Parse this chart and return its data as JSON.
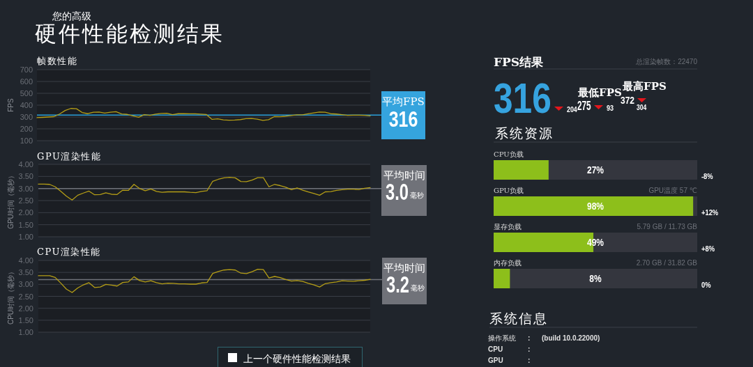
{
  "chart_data": [
    {
      "type": "other",
      "title": "硬件性能检测结果",
      "subtitle": "您的高级"
    },
    {
      "type": "line",
      "title": "帧数性能",
      "ylabel": "FPS",
      "categories": [
        null,
        null,
        null,
        null,
        null,
        null,
        null,
        null,
        null,
        null,
        null,
        null,
        null,
        null,
        null,
        null,
        null,
        null,
        null,
        null,
        null,
        null,
        null,
        null,
        null,
        null,
        null,
        null,
        null,
        null,
        null,
        null,
        null,
        null,
        null,
        null,
        null,
        null,
        null,
        null,
        null,
        null,
        null,
        null,
        null,
        null,
        null,
        null,
        null,
        null,
        null,
        null,
        null,
        null,
        null,
        null,
        null,
        null,
        null,
        null
      ],
      "series": [
        {
          "color": "#b59e16",
          "values": [
            295,
            297,
            300,
            303,
            325,
            355,
            372,
            370,
            338,
            328,
            340,
            342,
            333,
            340,
            345,
            326,
            322,
            310,
            298,
            320,
            314,
            324,
            330,
            332,
            320,
            328,
            328,
            327,
            327,
            324,
            321,
            280,
            284,
            276,
            273,
            274,
            278,
            286,
            287,
            281,
            271,
            277,
            303,
            302,
            306,
            312,
            318,
            318,
            327,
            334,
            342,
            340,
            328,
            325,
            320,
            314,
            316,
            316,
            314,
            309
          ]
        }
      ],
      "ylim": [
        100,
        700
      ],
      "yticks": [
        100,
        200,
        300,
        400,
        500,
        600,
        700
      ],
      "grid": "y",
      "tick_labels": "y",
      "ref_lines": [
        {
          "axis": "y",
          "value": 316,
          "color": "#2a9fd9"
        }
      ]
    },
    {
      "type": "other",
      "title": "平均FPS",
      "annotations": [
        "316"
      ]
    },
    {
      "type": "line",
      "title": "GPU渲染性能",
      "ylabel": "GPU时间（毫秒）",
      "categories": [
        null,
        null,
        null,
        null,
        null,
        null,
        null,
        null,
        null,
        null,
        null,
        null,
        null,
        null,
        null,
        null,
        null,
        null,
        null,
        null,
        null,
        null,
        null,
        null,
        null,
        null,
        null,
        null,
        null,
        null,
        null,
        null,
        null,
        null,
        null,
        null,
        null,
        null,
        null,
        null,
        null,
        null,
        null,
        null,
        null,
        null,
        null,
        null,
        null,
        null,
        null,
        null,
        null,
        null,
        null,
        null,
        null,
        null,
        null,
        null
      ],
      "series": [
        {
          "color": "#b59e16",
          "values": [
            3.18,
            3.18,
            3.17,
            3.07,
            2.88,
            2.68,
            2.52,
            2.72,
            2.81,
            2.89,
            2.74,
            2.75,
            2.82,
            2.76,
            2.75,
            2.93,
            2.92,
            3.17,
            3.0,
            2.91,
            2.98,
            2.88,
            2.84,
            2.86,
            2.86,
            2.86,
            2.86,
            2.84,
            2.83,
            2.88,
            2.91,
            3.3,
            3.38,
            3.44,
            3.46,
            3.44,
            3.29,
            3.28,
            3.35,
            3.45,
            3.45,
            3.07,
            3.17,
            3.12,
            3.05,
            2.95,
            3.02,
            2.93,
            2.86,
            2.79,
            2.72,
            2.86,
            2.87,
            2.92,
            2.95,
            2.97,
            2.97,
            2.96,
            3.01,
            3.04
          ]
        }
      ],
      "ylim": [
        1,
        4
      ],
      "yticks": [
        {
          "value": 1,
          "label": "1.00"
        },
        {
          "value": 1.5,
          "label": "1.50"
        },
        {
          "value": 2,
          "label": "2.00"
        },
        {
          "value": 2.5,
          "label": "2.50"
        },
        {
          "value": 3,
          "label": "3.00"
        },
        {
          "value": 3.5,
          "label": "3.50"
        },
        {
          "value": 4,
          "label": "4.00"
        }
      ],
      "grid": "y",
      "tick_labels": "y",
      "ref_lines": [
        {
          "axis": "y",
          "value": 3.0,
          "color": "#70737a"
        }
      ]
    },
    {
      "type": "other",
      "title": "平均时间",
      "annotations": [
        "3.0",
        "毫秒"
      ]
    },
    {
      "type": "line",
      "title": "CPU渲染性能",
      "ylabel": "CPU时间（毫秒）",
      "categories": [
        null,
        null,
        null,
        null,
        null,
        null,
        null,
        null,
        null,
        null,
        null,
        null,
        null,
        null,
        null,
        null,
        null,
        null,
        null,
        null,
        null,
        null,
        null,
        null,
        null,
        null,
        null,
        null,
        null,
        null,
        null,
        null,
        null,
        null,
        null,
        null,
        null,
        null,
        null,
        null,
        null,
        null,
        null,
        null,
        null,
        null,
        null,
        null,
        null,
        null,
        null,
        null,
        null,
        null,
        null,
        null,
        null,
        null,
        null,
        null
      ],
      "series": [
        {
          "color": "#b59e16",
          "values": [
            3.36,
            3.36,
            3.36,
            3.29,
            3.05,
            2.8,
            2.66,
            2.85,
            2.98,
            3.07,
            2.87,
            2.89,
            3.0,
            2.97,
            2.93,
            3.08,
            3.1,
            3.32,
            3.16,
            3.1,
            3.15,
            3.07,
            3.02,
            3.05,
            3.04,
            3.02,
            3.02,
            3.01,
            3.01,
            3.06,
            3.08,
            3.46,
            3.54,
            3.6,
            3.62,
            3.6,
            3.47,
            3.45,
            3.53,
            3.63,
            3.62,
            3.27,
            3.33,
            3.28,
            3.2,
            3.14,
            3.16,
            3.12,
            3.04,
            2.98,
            2.89,
            3.03,
            3.07,
            3.1,
            3.15,
            3.14,
            3.13,
            3.15,
            3.17,
            3.21
          ]
        }
      ],
      "ylim": [
        1,
        4
      ],
      "yticks": [
        {
          "value": 1,
          "label": "1.00"
        },
        {
          "value": 1.5,
          "label": "1.50"
        },
        {
          "value": 2,
          "label": "2.00"
        },
        {
          "value": 2.5,
          "label": "2.50"
        },
        {
          "value": 3,
          "label": "3.00"
        },
        {
          "value": 3.5,
          "label": "3.50"
        },
        {
          "value": 4,
          "label": "4.00"
        }
      ],
      "grid": "y",
      "tick_labels": "y",
      "ref_lines": [
        {
          "axis": "y",
          "value": 3.2,
          "color": "#70737a"
        }
      ]
    },
    {
      "type": "other",
      "title": "平均时间",
      "annotations": [
        "3.2",
        "毫秒"
      ]
    },
    {
      "type": "other",
      "title": "上一个硬件性能检测结果"
    },
    {
      "type": "other",
      "title": "FPS结果",
      "annotations": [
        "总渲染帧数：22470",
        "316",
        "最低FPS",
        "204",
        "275",
        "93",
        "最高FPS",
        "372",
        "304"
      ]
    },
    {
      "type": "bar",
      "orientation": "horizontal",
      "title": "系统资源",
      "categories": [
        "CPU负载",
        "GPU负载",
        "显存负载",
        "内存负载"
      ],
      "values": [
        27,
        98,
        49,
        8
      ],
      "value_labels": [
        "27%",
        "98%",
        "49%",
        "8%"
      ],
      "color": "#8dbf1b",
      "xlim": [
        0,
        100
      ],
      "tick_labels": "y",
      "annotations": [
        "-8%",
        "+12%",
        "+8%",
        "0%",
        "GPU温度 57 ℃",
        "5.79 GB / 11.73 GB",
        "2.70 GB / 31.82 GB"
      ]
    },
    {
      "type": "other",
      "title": "系统信息",
      "annotations": [
        "操作系统",
        ":",
        "(build 10.0.22000)",
        "CPU",
        ":",
        "GPU",
        ":"
      ]
    }
  ]
}
